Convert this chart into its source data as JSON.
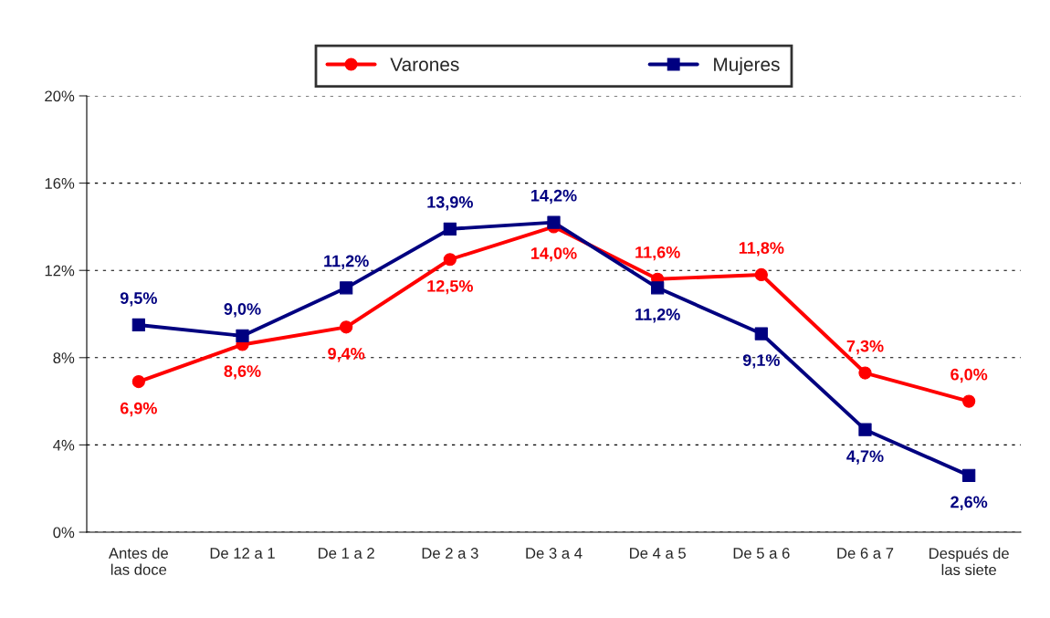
{
  "chart_data": {
    "type": "line",
    "categories": [
      "Antes de\nlas doce",
      "De 12 a 1",
      "De 1 a 2",
      "De 2 a 3",
      "De 3 a 4",
      "De 4 a 5",
      "De 5 a 6",
      "De 6 a 7",
      "Después de\nlas siete"
    ],
    "series": [
      {
        "name": "Varones",
        "color": "#ff0000",
        "marker": "circle",
        "values": [
          6.9,
          8.6,
          9.4,
          12.5,
          14.0,
          11.6,
          11.8,
          7.3,
          6.0
        ],
        "value_labels": [
          "6,9%",
          "8,6%",
          "9,4%",
          "12,5%",
          "14,0%",
          "11,6%",
          "11,8%",
          "7,3%",
          "6,0%"
        ]
      },
      {
        "name": "Mujeres",
        "color": "#000080",
        "marker": "square",
        "values": [
          9.5,
          9.0,
          11.2,
          13.9,
          14.2,
          11.2,
          9.1,
          4.7,
          2.6
        ],
        "value_labels": [
          "9,5%",
          "9,0%",
          "11,2%",
          "13,9%",
          "14,2%",
          "11,2%",
          "9,1%",
          "4,7%",
          "2,6%"
        ]
      }
    ],
    "ylim": [
      0,
      20
    ],
    "yticks": [
      {
        "value": 0,
        "label": "0%"
      },
      {
        "value": 4,
        "label": "4%"
      },
      {
        "value": 8,
        "label": "8%"
      },
      {
        "value": 12,
        "label": "12%"
      },
      {
        "value": 16,
        "label": "16%"
      },
      {
        "value": 20,
        "label": "20%"
      }
    ],
    "grid": "y",
    "legend": "top",
    "line_style": "solid"
  }
}
